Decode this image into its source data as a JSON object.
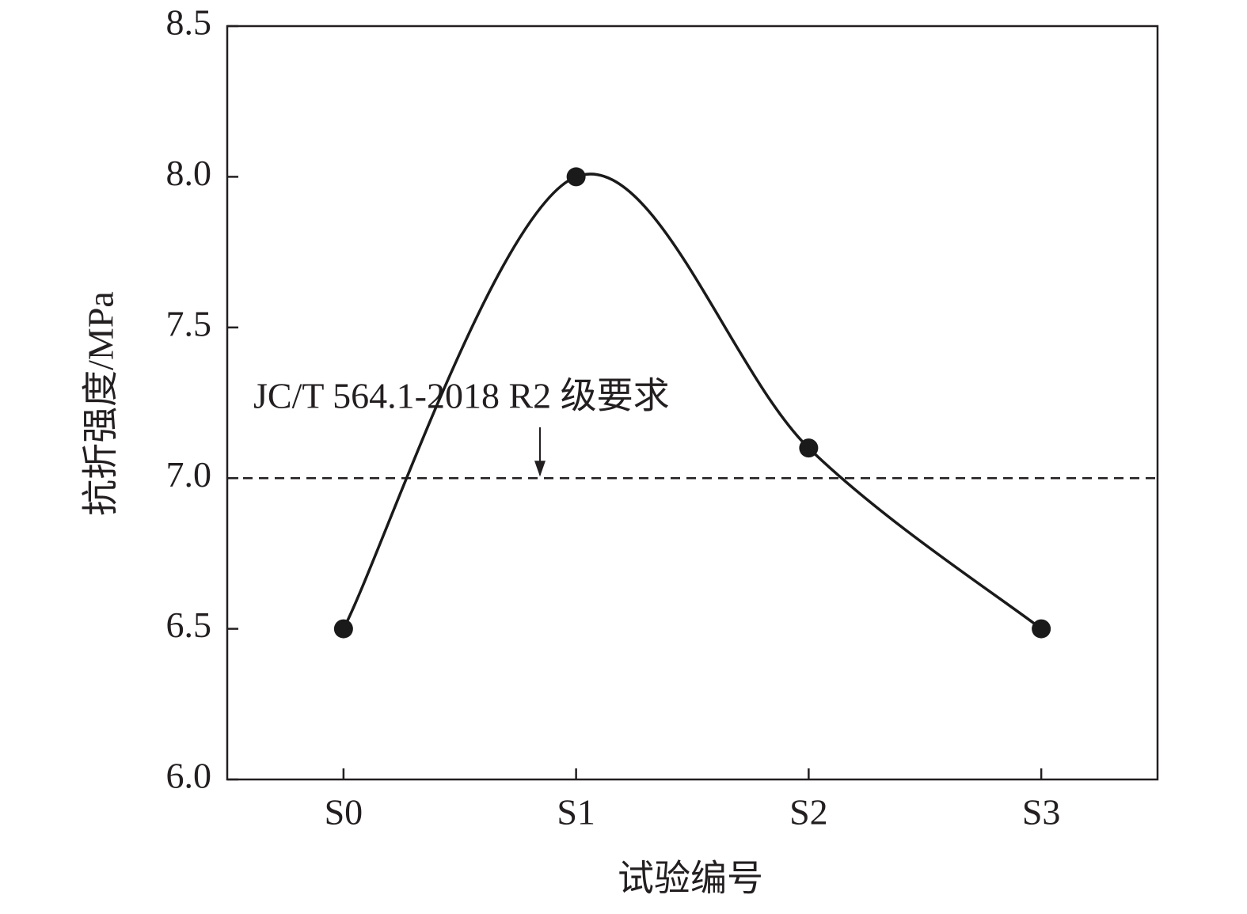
{
  "chart_data": {
    "type": "line",
    "categories": [
      "S0",
      "S1",
      "S2",
      "S3"
    ],
    "values": [
      6.5,
      8.0,
      7.1,
      6.5
    ],
    "color": "#1a1a1a",
    "x_label": "试验编号",
    "y_label": "抗折强度/MPa",
    "ylim": [
      6,
      8.5
    ],
    "yticks": [
      {
        "value": 6,
        "label": "6.0"
      },
      6.5,
      {
        "value": 7,
        "label": "7.0"
      },
      7.5,
      {
        "value": 8,
        "label": "8.0"
      },
      8.5
    ],
    "smooth": true,
    "reference_line": {
      "value": 7,
      "label": "JC/T 564.1-2018 R2 级要求"
    }
  }
}
